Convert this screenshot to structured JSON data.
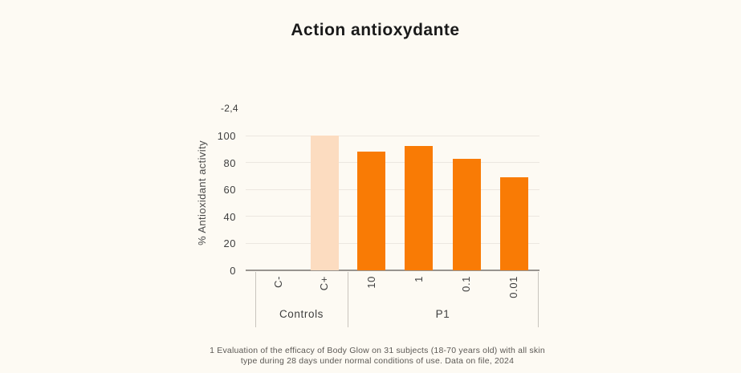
{
  "title": "Action antioxydante",
  "chart_data": {
    "type": "bar",
    "title": "Action antioxydante",
    "ylabel": "% Antioxidant activity",
    "xlabel": "",
    "ylim": [
      0,
      100
    ],
    "yticks": [
      0,
      20,
      40,
      60,
      80,
      100
    ],
    "grid": true,
    "legend": false,
    "negative_control_annotation": "-2,4",
    "categories": [
      "C-",
      "C+",
      "10",
      "1",
      "0.1",
      "0.01"
    ],
    "values": [
      -2.4,
      100,
      88,
      92,
      83,
      69
    ],
    "bar_colors": [
      "#F97B05",
      "#FCDCC0",
      "#F97B05",
      "#F97B05",
      "#F97B05",
      "#F97B05"
    ],
    "groups": [
      {
        "label": "Controls",
        "categories": [
          "C-",
          "C+"
        ],
        "values": [
          -2.4,
          100
        ]
      },
      {
        "label": "P1",
        "categories": [
          "10",
          "1",
          "0.1",
          "0.01"
        ],
        "values": [
          88,
          92,
          83,
          69
        ]
      }
    ],
    "colors": {
      "series": "#F97B05",
      "positive_control": "#FCDCC0",
      "background": "#FDFAF3",
      "gridline": "#ECE7E0",
      "axis_line": "#98948F"
    }
  },
  "footnote": {
    "line1": "1 Evaluation of the efficacy of Body Glow on 31 subjects (18-70 years old) with all skin",
    "line2": "type during 28 days under normal conditions of use. Data on file, 2024"
  }
}
